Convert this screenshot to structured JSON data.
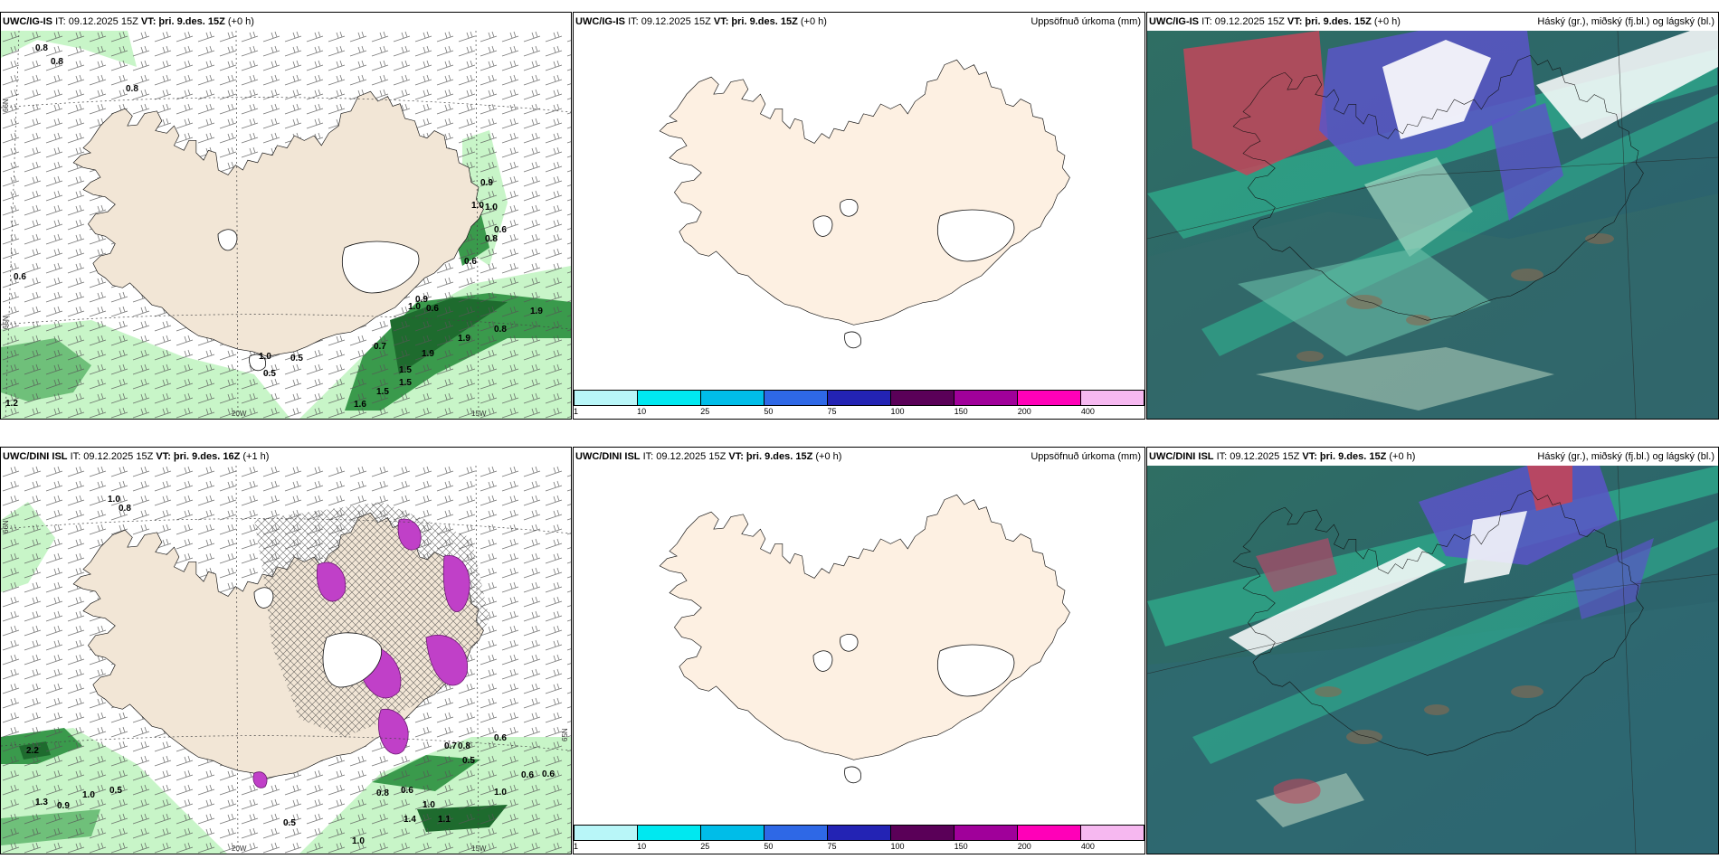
{
  "panels": {
    "p1": {
      "model": "UWC/IG-IS",
      "it": "IT: 09.12.2025 15Z",
      "vt_prefix": "VT:",
      "vt": "þri. 9.des. 15Z",
      "lead": "(+0 h)",
      "right": "",
      "contour_labels": [
        "0.8",
        "0.8",
        "0.8",
        "0.9",
        "1.0",
        "1.0",
        "0.6",
        "0.8",
        "0.6",
        "0.6",
        "1.9",
        "0.8",
        "1.9",
        "1.9",
        "1.5",
        "1.5",
        "1.6",
        "1.5",
        "0.7",
        "1.0",
        "0.5",
        "0.5",
        "0.9",
        "1.0",
        "0.6",
        "1.2"
      ],
      "lon_labels": [
        "20W",
        "15W"
      ],
      "lat_labels": [
        "66N",
        "65N"
      ]
    },
    "p2": {
      "model": "UWC/IG-IS",
      "it": "IT: 09.12.2025 15Z",
      "vt_prefix": "VT:",
      "vt": "þri. 9.des. 15Z",
      "lead": "(+0 h)",
      "right": "Uppsöfnuð úrkoma (mm)"
    },
    "p3": {
      "model": "UWC/IG-IS",
      "it": "IT: 09.12.2025 15Z",
      "vt_prefix": "VT:",
      "vt": "þri. 9.des. 15Z",
      "lead": "(+0 h)",
      "right": "Háský (gr.), miðský (fj.bl.) og lágský (bl.)"
    },
    "p4": {
      "model": "UWC/DINI ISL",
      "it": "IT: 09.12.2025 15Z",
      "vt_prefix": "VT:",
      "vt": "þri. 9.des. 16Z",
      "lead": "(+1 h)",
      "right": "",
      "contour_labels": [
        "0.8",
        "1.0",
        "2.2",
        "1.0",
        "0.5",
        "1.3",
        "0.9",
        "0.5",
        "0.8",
        "0.6",
        "1.0",
        "1.4",
        "1.1",
        "1.0",
        "0.6",
        "0.6",
        "0.7",
        "0.8",
        "0.6",
        "0.5",
        "1.0"
      ],
      "lon_labels": [
        "20W",
        "15W"
      ],
      "lat_labels": [
        "66N",
        "65N"
      ]
    },
    "p5": {
      "model": "UWC/DINI ISL",
      "it": "IT: 09.12.2025 15Z",
      "vt_prefix": "VT:",
      "vt": "þri. 9.des. 15Z",
      "lead": "(+0 h)",
      "right": "Uppsöfnuð úrkoma (mm)"
    },
    "p6": {
      "model": "UWC/DINI ISL",
      "it": "IT: 09.12.2025 15Z",
      "vt_prefix": "VT:",
      "vt": "þri. 9.des. 15Z",
      "lead": "(+0 h)",
      "right": "Háský (gr.), miðský (fj.bl.) og lágský (bl.)"
    }
  },
  "colorbar": {
    "ticks": [
      "1",
      "10",
      "25",
      "50",
      "75",
      "100",
      "150",
      "200",
      "400"
    ],
    "colors": [
      "#b8f6f8",
      "#00e8f0",
      "#00bde8",
      "#2e68e6",
      "#2323b4",
      "#5a0058",
      "#a0009a",
      "#ff00b8",
      "#f6b8f0"
    ]
  }
}
